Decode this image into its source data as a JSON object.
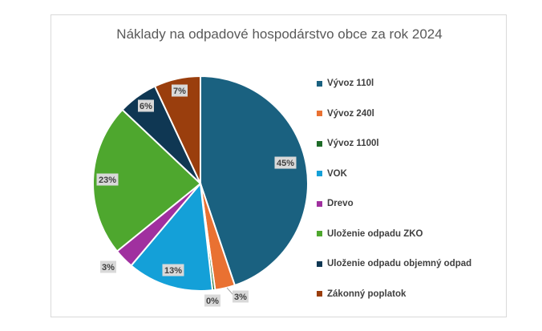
{
  "chart_data": {
    "type": "pie",
    "title": "Náklady na odpadové hospodárstvo obce za rok 2024",
    "legend_position": "right",
    "data_labels_shown": true,
    "slices": [
      {
        "name": "Vývoz 110l",
        "value": 45,
        "label": "45%",
        "color": "#1a6180"
      },
      {
        "name": "Vývoz 240l",
        "value": 3,
        "label": "3%",
        "color": "#e97132"
      },
      {
        "name": "Vývoz 1100l",
        "value": 0.4,
        "label": "0%",
        "color": "#1e6b28"
      },
      {
        "name": "VOK",
        "value": 13,
        "label": "13%",
        "color": "#14a0d8"
      },
      {
        "name": "Drevo",
        "value": 3,
        "label": "3%",
        "color": "#a0309f"
      },
      {
        "name": "Uloženie odpadu ZKO",
        "value": 23,
        "label": "23%",
        "color": "#4ea72e"
      },
      {
        "name": "Uloženie odpadu objemný odpad",
        "value": 6,
        "label": "6%",
        "color": "#0f3753"
      },
      {
        "name": "Zákonný poplatok",
        "value": 7,
        "label": "7%",
        "color": "#9a3e0d"
      }
    ]
  }
}
